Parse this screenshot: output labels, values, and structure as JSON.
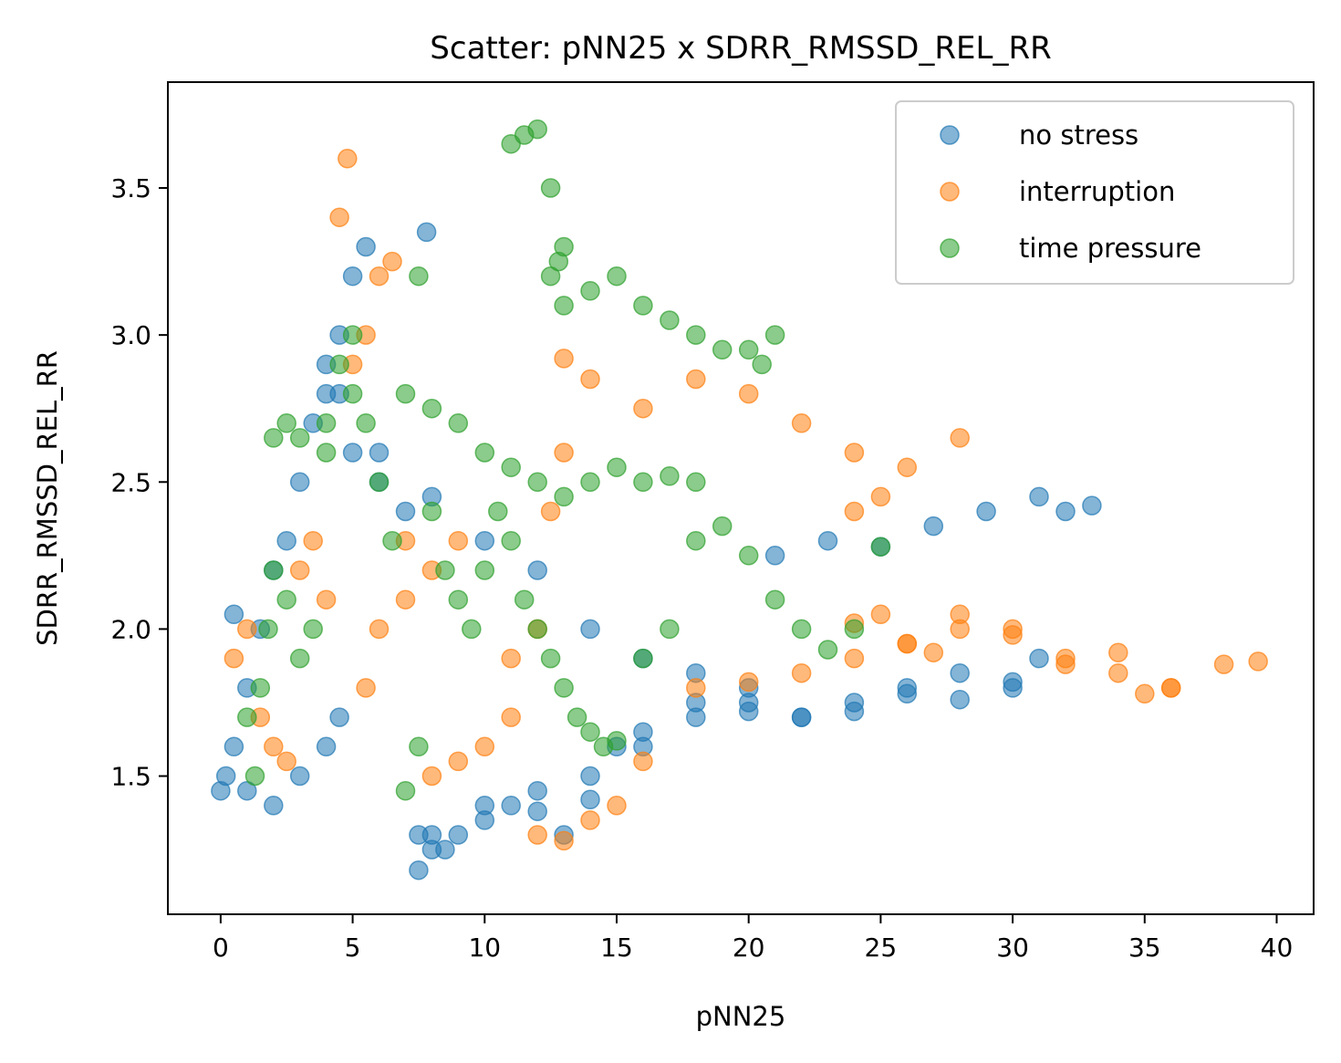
{
  "chart_data": {
    "type": "scatter",
    "title": "Scatter: pNN25 x SDRR_RMSSD_REL_RR",
    "xlabel": "pNN25",
    "ylabel": "SDRR_RMSSD_REL_RR",
    "xlim": [
      -2.0,
      41.4
    ],
    "ylim": [
      1.03,
      3.86
    ],
    "xticks": [
      0,
      5,
      10,
      15,
      20,
      25,
      30,
      35,
      40
    ],
    "yticks": [
      1.5,
      2.0,
      2.5,
      3.0,
      3.5
    ],
    "xtick_labels": [
      "0",
      "5",
      "10",
      "15",
      "20",
      "25",
      "30",
      "35",
      "40"
    ],
    "ytick_labels": [
      "1.5",
      "2.0",
      "2.5",
      "3.0",
      "3.5"
    ],
    "grid": false,
    "legend_position": "top-right",
    "series": [
      {
        "name": "no stress",
        "color": "#1f77b4",
        "x": [
          0.0,
          0.2,
          0.5,
          1.0,
          1.5,
          2.0,
          2.5,
          3.0,
          3.5,
          4.0,
          4.5,
          5.0,
          5.5,
          6.0,
          7.0,
          7.5,
          8.0,
          9.0,
          10.0,
          11.0,
          12.0,
          13.0,
          14.0,
          15.0,
          16.0,
          18.0,
          20.0,
          22.0,
          24.0,
          26.0,
          28.0,
          30.0,
          31.0,
          32.0,
          33.0,
          0.5,
          1.0,
          2.0,
          3.0,
          4.0,
          4.5,
          7.5,
          8.0,
          8.5,
          10.0,
          12.0,
          14.0,
          16.0,
          18.0,
          20.0,
          21.0,
          23.0,
          25.0,
          27.0,
          29.0,
          31.0,
          4.0,
          4.5,
          5.0,
          6.0,
          8.0,
          10.0,
          12.0,
          14.0,
          16.0,
          18.0,
          20.0,
          22.0,
          24.0,
          26.0,
          28.0,
          30.0,
          7.8
        ],
        "y": [
          1.45,
          1.5,
          1.6,
          1.8,
          2.0,
          2.2,
          2.3,
          2.5,
          2.7,
          2.8,
          3.0,
          3.2,
          3.3,
          2.6,
          2.4,
          1.3,
          1.25,
          1.3,
          1.35,
          1.4,
          1.45,
          1.3,
          1.5,
          1.6,
          1.65,
          1.7,
          1.72,
          1.7,
          1.75,
          1.8,
          1.85,
          1.82,
          1.9,
          2.4,
          2.42,
          2.05,
          1.45,
          1.4,
          1.5,
          1.6,
          1.7,
          1.18,
          1.3,
          1.25,
          1.4,
          1.38,
          1.42,
          1.6,
          1.75,
          1.8,
          2.25,
          2.3,
          2.28,
          2.35,
          2.4,
          2.45,
          2.9,
          2.8,
          2.6,
          2.5,
          2.45,
          2.3,
          2.2,
          2.0,
          1.9,
          1.85,
          1.75,
          1.7,
          1.72,
          1.78,
          1.76,
          1.8,
          3.35
        ]
      },
      {
        "name": "interruption",
        "color": "#ff7f0e",
        "x": [
          0.5,
          1.0,
          1.5,
          2.0,
          2.5,
          3.0,
          3.5,
          4.0,
          4.5,
          4.8,
          5.0,
          5.5,
          6.0,
          6.5,
          7.0,
          8.0,
          9.0,
          10.0,
          11.0,
          12.0,
          13.0,
          14.0,
          15.0,
          16.0,
          18.0,
          20.0,
          22.0,
          24.0,
          26.0,
          28.0,
          30.0,
          32.0,
          34.0,
          36.0,
          38.0,
          39.3,
          13.0,
          14.0,
          16.0,
          18.0,
          20.0,
          22.0,
          24.0,
          26.0,
          28.0,
          12.5,
          13.0,
          12.0,
          11.0,
          8.0,
          9.0,
          7.0,
          6.0,
          5.5,
          24.0,
          25.0,
          26.0,
          27.0,
          28.0,
          30.0,
          32.0,
          34.0,
          36.0,
          35.0,
          25.0,
          24.0
        ],
        "y": [
          1.9,
          2.0,
          1.7,
          1.6,
          1.55,
          2.2,
          2.3,
          2.1,
          3.4,
          3.6,
          2.9,
          3.0,
          3.2,
          3.25,
          2.3,
          1.5,
          1.55,
          1.6,
          1.7,
          1.3,
          1.28,
          1.35,
          1.4,
          1.55,
          1.8,
          1.82,
          1.85,
          1.9,
          1.95,
          2.0,
          1.98,
          1.9,
          1.85,
          1.8,
          1.88,
          1.89,
          2.92,
          2.85,
          2.75,
          2.85,
          2.8,
          2.7,
          2.6,
          2.55,
          2.65,
          2.4,
          2.6,
          2.0,
          1.9,
          2.2,
          2.3,
          2.1,
          2.0,
          1.8,
          2.02,
          2.05,
          1.95,
          1.92,
          2.05,
          2.0,
          1.88,
          1.92,
          1.8,
          1.78,
          2.45,
          2.4
        ]
      },
      {
        "name": "time pressure",
        "color": "#2ca02c",
        "x": [
          1.0,
          1.3,
          1.5,
          1.8,
          2.0,
          2.5,
          3.0,
          3.5,
          4.0,
          4.5,
          5.0,
          5.5,
          6.0,
          6.5,
          7.0,
          7.5,
          8.0,
          8.5,
          9.0,
          9.5,
          10.0,
          10.5,
          11.0,
          11.5,
          12.0,
          12.5,
          13.0,
          13.5,
          14.0,
          14.5,
          15.0,
          16.0,
          17.0,
          18.0,
          19.0,
          20.0,
          21.0,
          22.0,
          23.0,
          24.0,
          25.0,
          11.0,
          11.5,
          12.0,
          12.5,
          13.0,
          12.8,
          12.5,
          13.0,
          14.0,
          15.0,
          16.0,
          17.0,
          18.0,
          19.0,
          20.0,
          21.0,
          20.5,
          3.0,
          4.0,
          5.0,
          7.5,
          7.0,
          8.0,
          9.0,
          10.0,
          11.0,
          12.0,
          13.0,
          14.0,
          15.0,
          16.0,
          17.0,
          18.0,
          2.0,
          2.5
        ],
        "y": [
          1.7,
          1.5,
          1.8,
          2.0,
          2.2,
          2.1,
          1.9,
          2.0,
          2.6,
          2.9,
          3.0,
          2.7,
          2.5,
          2.3,
          1.45,
          1.6,
          2.4,
          2.2,
          2.1,
          2.0,
          2.2,
          2.4,
          2.3,
          2.1,
          2.0,
          1.9,
          1.8,
          1.7,
          1.65,
          1.6,
          1.62,
          1.9,
          2.0,
          2.3,
          2.35,
          2.25,
          2.1,
          2.0,
          1.93,
          2.0,
          2.28,
          3.65,
          3.68,
          3.7,
          3.5,
          3.3,
          3.25,
          3.2,
          3.1,
          3.15,
          3.2,
          3.1,
          3.05,
          3.0,
          2.95,
          2.95,
          3.0,
          2.9,
          2.65,
          2.7,
          2.8,
          3.2,
          2.8,
          2.75,
          2.7,
          2.6,
          2.55,
          2.5,
          2.45,
          2.5,
          2.55,
          2.5,
          2.52,
          2.5,
          2.65,
          2.7
        ]
      }
    ]
  }
}
